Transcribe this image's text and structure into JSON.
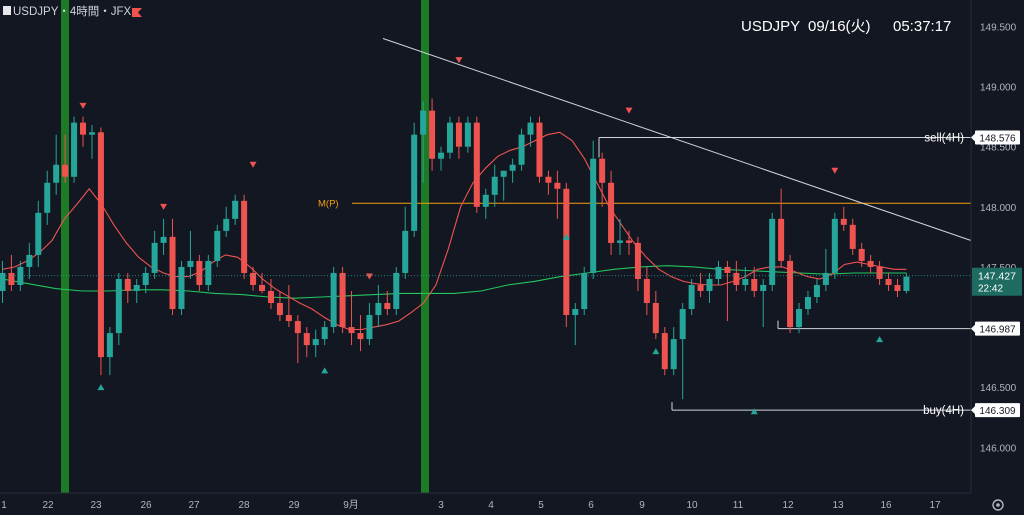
{
  "header": {
    "symbol_label": "USDJPY・4時間・JFX",
    "clock_symbol": "USDJPY",
    "clock_date": "09/16(火)",
    "clock_time": "05:37:17"
  },
  "chart_data": {
    "type": "candlestick",
    "symbol": "USDJPY",
    "timeframe": "4時間",
    "broker": "JFX",
    "ylim": [
      145.62,
      149.72
    ],
    "y_ticks": [
      "146.000",
      "146.500",
      "147.000",
      "147.500",
      "148.000",
      "148.500",
      "149.000",
      "149.500"
    ],
    "x_tick_labels": [
      "1",
      "22",
      "23",
      "26",
      "27",
      "28",
      "29",
      "9月",
      "3",
      "4",
      "5",
      "6",
      "9",
      "10",
      "11",
      "12",
      "13",
      "16",
      "17"
    ],
    "candles": [
      [
        147.3,
        147.55,
        147.2,
        147.45
      ],
      [
        147.45,
        147.6,
        147.3,
        147.35
      ],
      [
        147.35,
        147.55,
        147.3,
        147.5
      ],
      [
        147.5,
        147.7,
        147.4,
        147.6
      ],
      [
        147.6,
        148.05,
        147.5,
        147.95
      ],
      [
        147.95,
        148.3,
        147.85,
        148.2
      ],
      [
        148.2,
        148.6,
        148.1,
        148.35
      ],
      [
        148.35,
        148.6,
        148.2,
        148.25
      ],
      [
        148.25,
        148.75,
        148.2,
        148.7
      ],
      [
        148.7,
        148.75,
        148.5,
        148.6
      ],
      [
        148.6,
        148.68,
        148.4,
        148.62
      ],
      [
        148.62,
        148.66,
        146.6,
        146.75
      ],
      [
        146.75,
        147.0,
        146.6,
        146.95
      ],
      [
        146.95,
        147.45,
        146.85,
        147.4
      ],
      [
        147.4,
        147.45,
        147.2,
        147.3
      ],
      [
        147.3,
        147.4,
        147.2,
        147.35
      ],
      [
        147.35,
        147.5,
        147.28,
        147.45
      ],
      [
        147.45,
        147.8,
        147.4,
        147.7
      ],
      [
        147.7,
        147.9,
        147.6,
        147.75
      ],
      [
        147.75,
        147.9,
        147.1,
        147.15
      ],
      [
        147.15,
        147.55,
        147.1,
        147.5
      ],
      [
        147.5,
        147.8,
        147.4,
        147.55
      ],
      [
        147.55,
        147.6,
        147.3,
        147.35
      ],
      [
        147.35,
        147.6,
        147.3,
        147.55
      ],
      [
        147.55,
        147.85,
        147.5,
        147.8
      ],
      [
        147.8,
        148.0,
        147.75,
        147.9
      ],
      [
        147.9,
        148.1,
        147.85,
        148.05
      ],
      [
        148.05,
        148.1,
        147.4,
        147.45
      ],
      [
        147.45,
        147.5,
        147.3,
        147.35
      ],
      [
        147.35,
        147.45,
        147.28,
        147.3
      ],
      [
        147.3,
        147.4,
        147.15,
        147.2
      ],
      [
        147.2,
        147.3,
        147.05,
        147.1
      ],
      [
        147.1,
        147.35,
        147.0,
        147.05
      ],
      [
        147.05,
        147.1,
        146.7,
        146.95
      ],
      [
        146.95,
        147.0,
        146.75,
        146.85
      ],
      [
        146.85,
        146.98,
        146.75,
        146.9
      ],
      [
        146.9,
        147.05,
        146.85,
        147.0
      ],
      [
        147.0,
        147.5,
        146.95,
        147.45
      ],
      [
        147.45,
        147.5,
        146.95,
        147.0
      ],
      [
        147.0,
        147.3,
        146.85,
        146.95
      ],
      [
        146.95,
        147.1,
        146.8,
        146.9
      ],
      [
        146.9,
        147.2,
        146.85,
        147.1
      ],
      [
        147.1,
        147.35,
        147.0,
        147.2
      ],
      [
        147.2,
        147.3,
        147.1,
        147.15
      ],
      [
        147.15,
        147.5,
        147.1,
        147.45
      ],
      [
        147.45,
        148.0,
        147.4,
        147.8
      ],
      [
        147.8,
        148.7,
        147.75,
        148.6
      ],
      [
        148.6,
        148.88,
        148.2,
        148.8
      ],
      [
        148.8,
        148.9,
        148.3,
        148.4
      ],
      [
        148.4,
        148.5,
        148.3,
        148.45
      ],
      [
        148.45,
        148.75,
        148.4,
        148.7
      ],
      [
        148.7,
        148.75,
        148.4,
        148.5
      ],
      [
        148.5,
        148.75,
        148.45,
        148.7
      ],
      [
        148.7,
        148.75,
        147.95,
        148.0
      ],
      [
        148.0,
        148.15,
        147.9,
        148.1
      ],
      [
        148.1,
        148.35,
        148.0,
        148.25
      ],
      [
        148.25,
        148.3,
        148.05,
        148.3
      ],
      [
        148.3,
        148.4,
        148.2,
        148.35
      ],
      [
        148.35,
        148.65,
        148.3,
        148.6
      ],
      [
        148.6,
        148.75,
        148.5,
        148.7
      ],
      [
        148.7,
        148.75,
        148.2,
        148.25
      ],
      [
        148.25,
        148.3,
        148.1,
        148.2
      ],
      [
        148.2,
        148.3,
        147.9,
        148.15
      ],
      [
        148.15,
        148.2,
        147.0,
        147.1
      ],
      [
        147.1,
        147.2,
        146.85,
        147.15
      ],
      [
        147.15,
        147.5,
        147.1,
        147.45
      ],
      [
        147.45,
        148.55,
        147.4,
        148.4
      ],
      [
        148.4,
        148.45,
        148.0,
        148.2
      ],
      [
        148.2,
        148.3,
        147.6,
        147.7
      ],
      [
        147.7,
        147.9,
        147.6,
        147.72
      ],
      [
        147.72,
        147.8,
        147.6,
        147.7
      ],
      [
        147.7,
        147.75,
        147.3,
        147.4
      ],
      [
        147.4,
        147.5,
        147.1,
        147.2
      ],
      [
        147.2,
        147.3,
        146.9,
        146.95
      ],
      [
        146.95,
        147.0,
        146.6,
        146.65
      ],
      [
        146.65,
        147.0,
        146.6,
        146.9
      ],
      [
        146.9,
        147.2,
        146.4,
        147.15
      ],
      [
        147.15,
        147.4,
        147.1,
        147.35
      ],
      [
        147.35,
        147.45,
        147.25,
        147.3
      ],
      [
        147.3,
        147.45,
        147.2,
        147.4
      ],
      [
        147.4,
        147.55,
        147.35,
        147.5
      ],
      [
        147.5,
        147.55,
        147.05,
        147.45
      ],
      [
        147.45,
        147.55,
        147.3,
        147.35
      ],
      [
        147.35,
        147.5,
        147.3,
        147.4
      ],
      [
        147.4,
        147.5,
        147.25,
        147.3
      ],
      [
        147.3,
        147.4,
        147.0,
        147.35
      ],
      [
        147.35,
        147.95,
        147.3,
        147.9
      ],
      [
        147.9,
        148.15,
        147.5,
        147.55
      ],
      [
        147.55,
        147.6,
        146.95,
        147.0
      ],
      [
        147.0,
        147.2,
        146.95,
        147.15
      ],
      [
        147.15,
        147.3,
        147.1,
        147.25
      ],
      [
        147.25,
        147.4,
        147.2,
        147.35
      ],
      [
        147.35,
        147.65,
        147.3,
        147.45
      ],
      [
        147.45,
        147.95,
        147.4,
        147.9
      ],
      [
        147.9,
        148.0,
        147.8,
        147.85
      ],
      [
        147.85,
        147.9,
        147.6,
        147.65
      ],
      [
        147.65,
        147.7,
        147.5,
        147.55
      ],
      [
        147.55,
        147.6,
        147.45,
        147.5
      ],
      [
        147.5,
        147.55,
        147.35,
        147.4
      ],
      [
        147.4,
        147.45,
        147.3,
        147.35
      ],
      [
        147.35,
        147.4,
        147.25,
        147.3
      ],
      [
        147.3,
        147.45,
        147.28,
        147.42
      ]
    ],
    "ema_short": [
      147.48,
      147.5,
      147.55,
      147.62,
      147.72,
      147.9,
      148.02,
      148.15,
      148.02,
      147.85,
      147.7,
      147.58,
      147.5,
      147.45,
      147.42,
      147.42,
      147.46,
      147.54,
      147.6,
      147.58,
      147.5,
      147.4,
      147.32,
      147.26,
      147.2,
      147.15,
      147.08,
      147.02,
      146.98,
      146.98,
      147.0,
      147.02,
      147.05,
      147.12,
      147.2,
      147.35,
      147.65,
      148.0,
      148.2,
      148.32,
      148.42,
      148.47,
      148.5,
      148.55,
      148.6,
      148.62,
      148.55,
      148.4,
      148.2,
      148.0,
      147.85,
      147.7,
      147.58,
      147.48,
      147.42,
      147.38,
      147.36,
      147.35,
      147.35,
      147.38,
      147.42,
      147.48,
      147.5,
      147.5,
      147.46,
      147.42,
      147.4,
      147.44,
      147.52,
      147.54,
      147.52,
      147.5,
      147.48,
      147.48
    ],
    "ema_long": [
      147.4,
      147.36,
      147.32,
      147.3,
      147.3,
      147.31,
      147.31,
      147.3,
      147.28,
      147.27,
      147.25,
      147.24,
      147.25,
      147.26,
      147.27,
      147.28,
      147.28,
      147.28,
      147.3,
      147.35,
      147.38,
      147.42,
      147.45,
      147.48,
      147.5,
      147.51,
      147.5,
      147.48,
      147.47,
      147.46,
      147.45,
      147.44,
      147.45,
      147.45,
      147.45
    ],
    "m_p_level": 148.03,
    "m_p_label": "M(P)",
    "current_price": "147.427",
    "current_price_countdown": "22:42",
    "levels": [
      {
        "label": "sell(4H)",
        "value": 148.576,
        "price_label": "148.576"
      },
      {
        "label": "",
        "value": 146.987,
        "price_label": "146.987"
      },
      {
        "label": "buy(4H)",
        "value": 146.309,
        "price_label": "146.309"
      }
    ],
    "trendline": {
      "from": {
        "x": "8/29",
        "y": 149.4
      },
      "to": {
        "x": "9/16",
        "y": 147.72
      }
    },
    "highlighted_sessions": [
      "8/22",
      "9/1"
    ],
    "down_markers": [
      {
        "candle": 9,
        "value": 148.84
      },
      {
        "candle": 18,
        "value": 148.0
      },
      {
        "candle": 28,
        "value": 148.35
      },
      {
        "candle": 41,
        "value": 147.42
      },
      {
        "candle": 51,
        "value": 149.22
      },
      {
        "candle": 70,
        "value": 148.8
      },
      {
        "candle": 93,
        "value": 148.3
      }
    ],
    "up_markers": [
      {
        "candle": 11,
        "value": 146.5
      },
      {
        "candle": 36,
        "value": 146.64
      },
      {
        "candle": 63,
        "value": 147.75
      },
      {
        "candle": 73,
        "value": 146.8
      },
      {
        "candle": 84,
        "value": 146.3
      },
      {
        "candle": 98,
        "value": 146.9
      }
    ],
    "colors": {
      "up": "#26a69a",
      "down": "#ef5350",
      "ema_short": "#ef5350",
      "ema_long": "#22c55e",
      "m_p": "#f59e0b",
      "session_highlight": "#1d7a25",
      "price_tag": "#1e6b62"
    }
  },
  "axis_settings_icon": "gear-icon"
}
